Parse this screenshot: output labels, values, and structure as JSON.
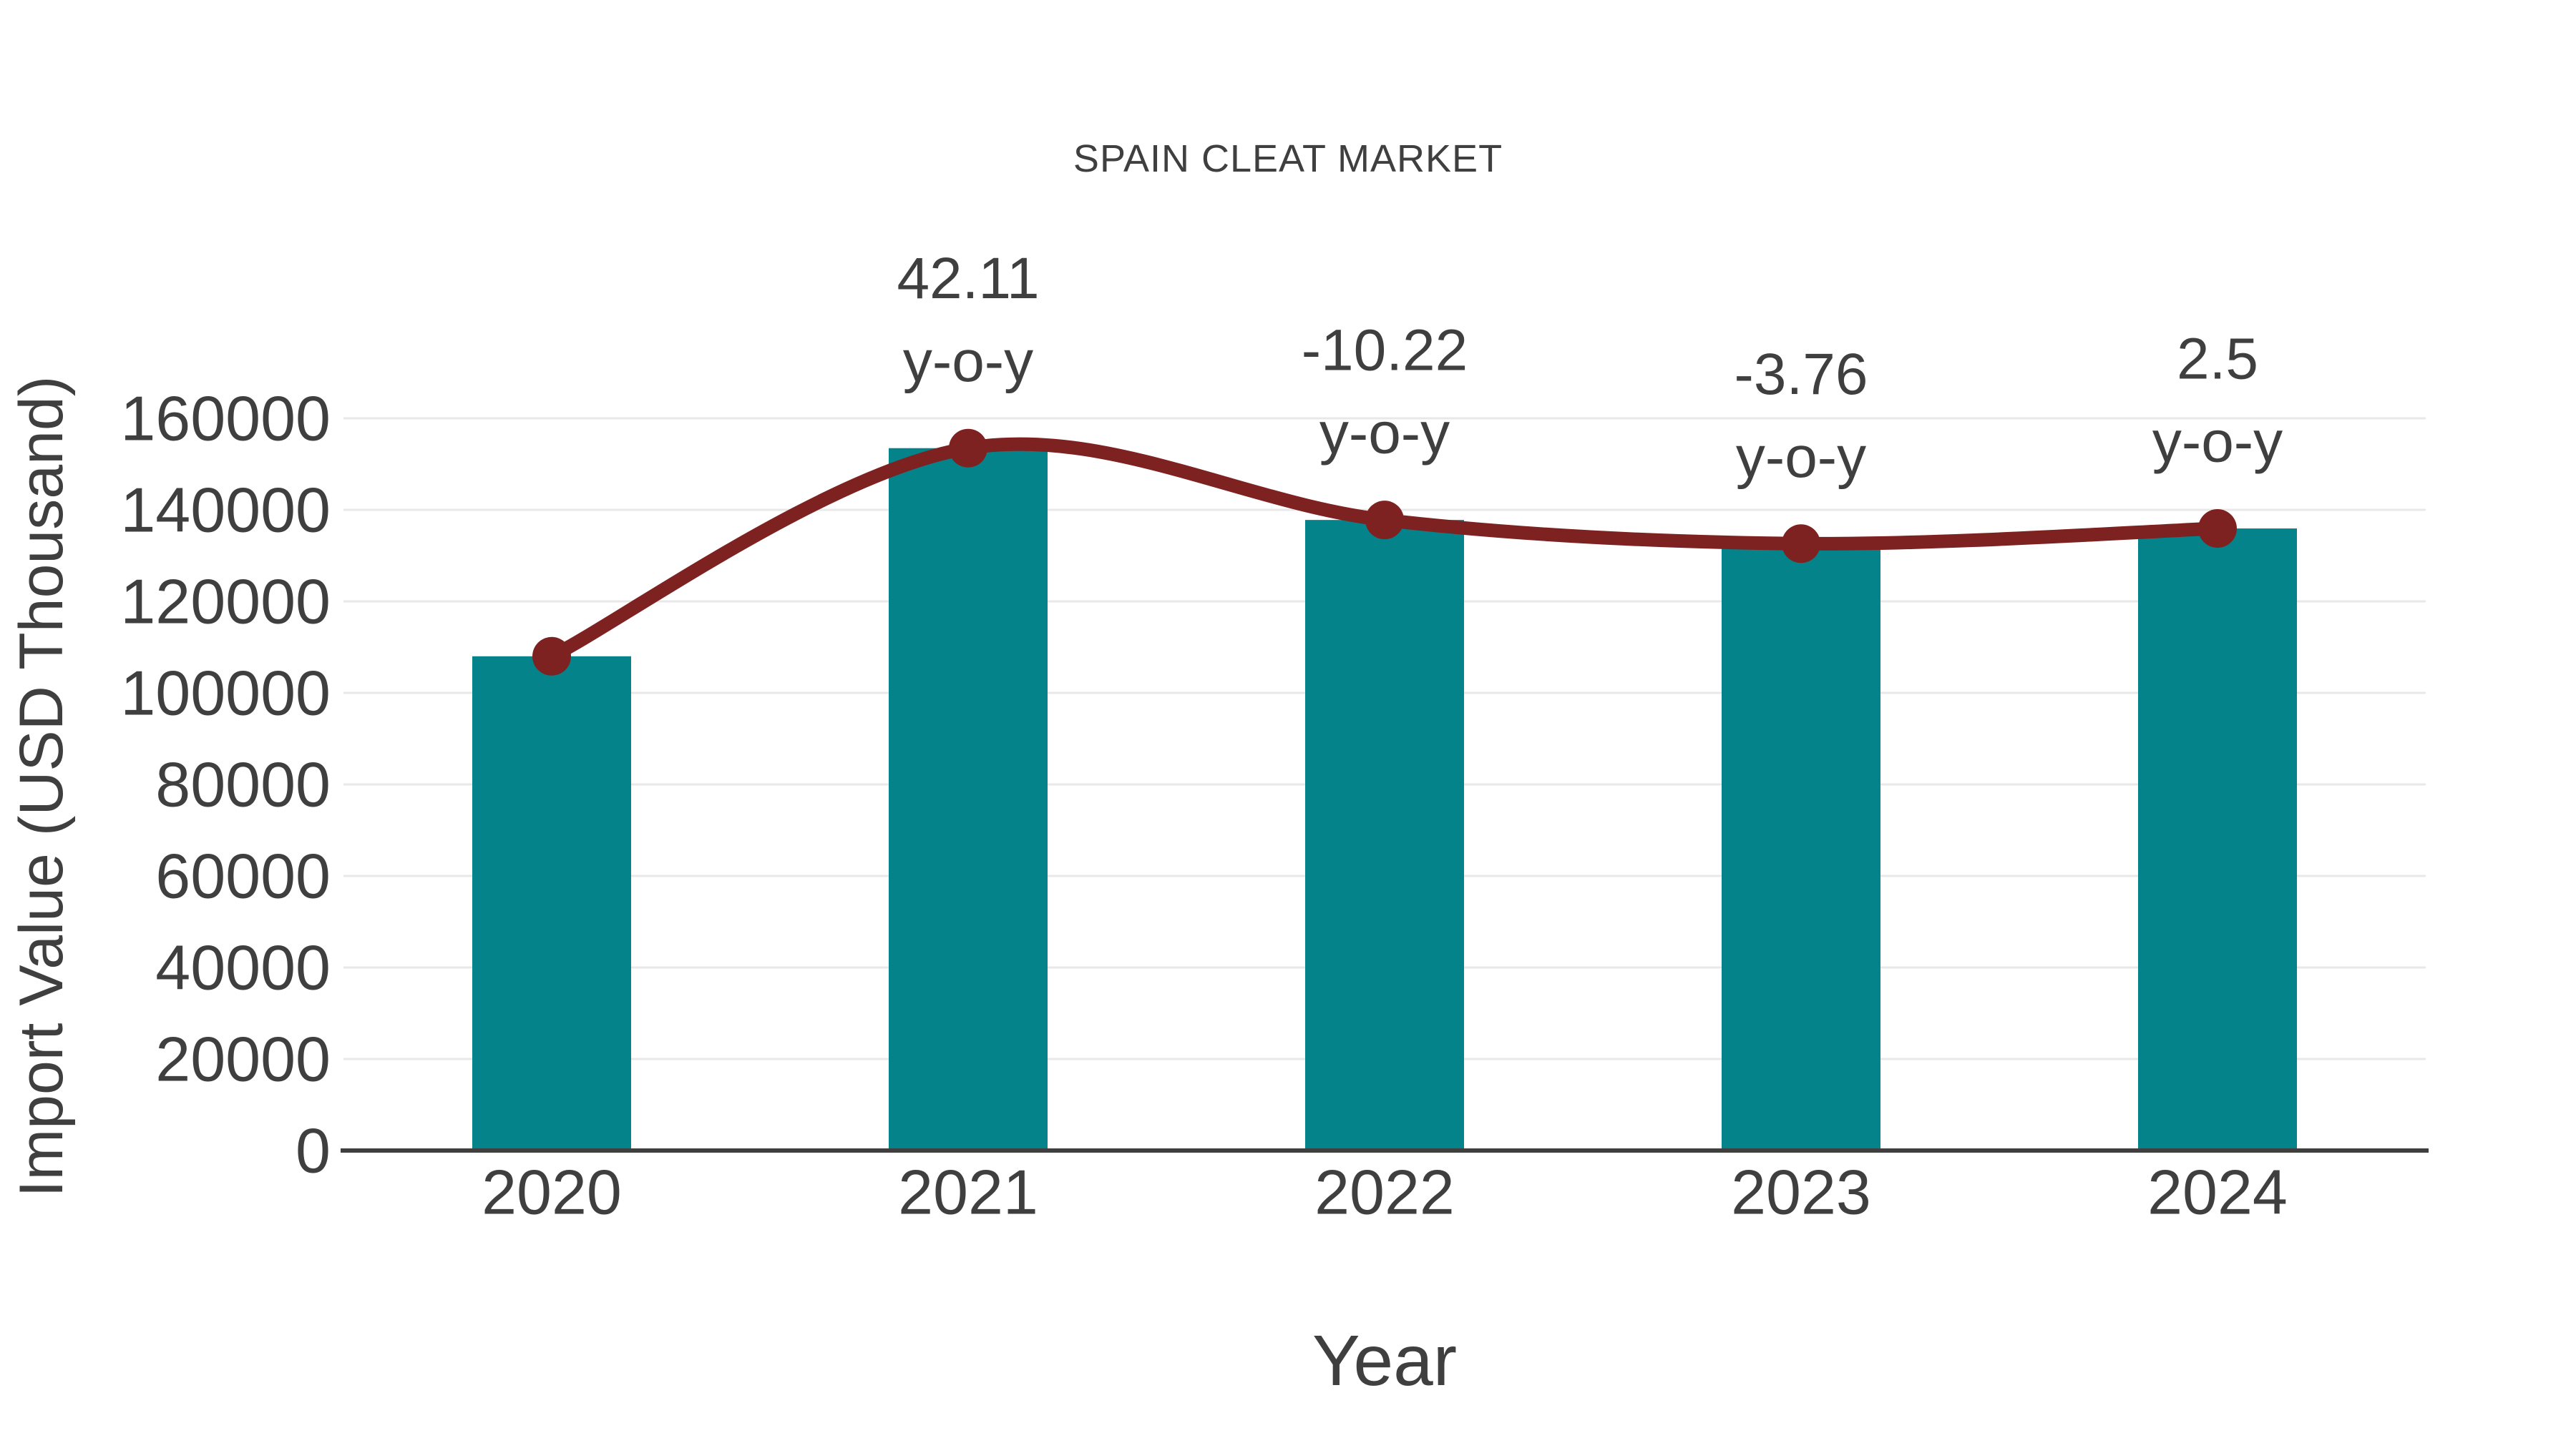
{
  "chart_data": {
    "type": "bar-line-combo",
    "title": "SPAIN CLEAT MARKET",
    "xlabel": "Year",
    "ylabel": "Import Value (USD Thousand)",
    "categories": [
      "2020",
      "2021",
      "2022",
      "2023",
      "2024"
    ],
    "series": [
      {
        "name": "Import Value bars",
        "type": "bar",
        "values": [
          108000,
          153480,
          137790,
          132610,
          135930
        ],
        "color": "#04838a"
      },
      {
        "name": "Import Value trend line",
        "type": "line",
        "values": [
          108000,
          153480,
          137790,
          132610,
          135930
        ],
        "color": "#7e2121",
        "marker": "circle"
      }
    ],
    "annotations": [
      {
        "category": "2021",
        "value_line": "42.11",
        "suffix_line": "y-o-y"
      },
      {
        "category": "2022",
        "value_line": "-10.22",
        "suffix_line": "y-o-y"
      },
      {
        "category": "2023",
        "value_line": "-3.76",
        "suffix_line": "y-o-y"
      },
      {
        "category": "2024",
        "value_line": "2.5",
        "suffix_line": "y-o-y"
      }
    ],
    "ylim": [
      0,
      160000
    ],
    "ytick_step": 20000,
    "yticks": [
      "0",
      "20000",
      "40000",
      "60000",
      "80000",
      "100000",
      "120000",
      "140000",
      "160000"
    ],
    "grid": "horizontal",
    "legend": "none",
    "colors": {
      "bar_fill": "#04838a",
      "line_stroke": "#7e2121",
      "marker_fill": "#7e2121",
      "text": "#3f3f3f",
      "gridline": "#e8e8e8",
      "axis_line": "#3f3f3f",
      "background": "#ffffff"
    }
  }
}
